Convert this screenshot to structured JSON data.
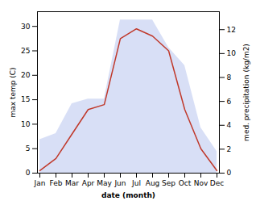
{
  "chart_data": {
    "type": "line",
    "xlabel": "date (month)",
    "ylabel": "max temp (C)",
    "y2label": "med. precipitation (kg/m2)",
    "categories": [
      "Jan",
      "Feb",
      "Mar",
      "Apr",
      "May",
      "Jun",
      "Jul",
      "Aug",
      "Sep",
      "Oct",
      "Nov",
      "Dec"
    ],
    "series": [
      {
        "type": "area",
        "axis": "y2",
        "color": "#b8c4ee",
        "values": [
          2.8,
          3.3,
          5.8,
          6.2,
          6.2,
          12.8,
          12.8,
          12.8,
          10.5,
          9.0,
          3.8,
          1.8
        ]
      },
      {
        "type": "line",
        "color": "#c0392b",
        "values": [
          0.5,
          3.0,
          8.0,
          13.0,
          14.0,
          27.5,
          29.5,
          28.0,
          25.0,
          13.0,
          5.0,
          0.5
        ]
      }
    ],
    "ylim": [
      0,
      33
    ],
    "yticks": [
      0,
      5,
      10,
      15,
      20,
      25,
      30
    ],
    "y2lim": [
      0,
      13.5
    ],
    "y2ticks": [
      0,
      2,
      4,
      6,
      8,
      10,
      12
    ],
    "grid": false
  }
}
